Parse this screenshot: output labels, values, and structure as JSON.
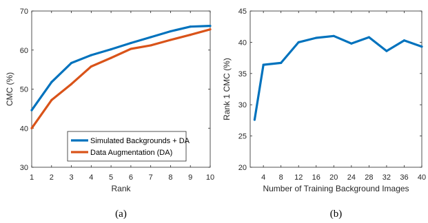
{
  "chart_data": [
    {
      "type": "line",
      "caption": "(a)",
      "xlabel": "Rank",
      "ylabel": "CMC (%)",
      "xlim": [
        1,
        10
      ],
      "ylim": [
        30,
        70
      ],
      "xticks": [
        1,
        2,
        3,
        4,
        5,
        6,
        7,
        8,
        9,
        10
      ],
      "yticks": [
        30,
        40,
        50,
        60,
        70
      ],
      "grid": false,
      "legend_position": "bottom-right",
      "x": [
        1,
        2,
        3,
        4,
        5,
        6,
        7,
        8,
        9,
        10
      ],
      "series": [
        {
          "name": "Simulated Backgrounds + DA",
          "color": "#0072BD",
          "values": [
            44.6,
            51.8,
            56.7,
            58.7,
            60.2,
            61.8,
            63.3,
            64.8,
            66.0,
            66.2
          ]
        },
        {
          "name": "Data Augmentation (DA)",
          "color": "#D95319",
          "values": [
            40.0,
            47.2,
            51.3,
            55.8,
            58.0,
            60.3,
            61.2,
            62.6,
            63.9,
            65.3
          ]
        }
      ]
    },
    {
      "type": "line",
      "caption": "(b)",
      "xlabel": "Number of Training Background Images",
      "ylabel": "Rank 1 CMC (%)",
      "xlim": [
        1,
        40
      ],
      "ylim": [
        20,
        45
      ],
      "xticks": [
        4,
        8,
        12,
        16,
        20,
        24,
        28,
        32,
        36,
        40
      ],
      "yticks": [
        20,
        25,
        30,
        35,
        40,
        45
      ],
      "grid": false,
      "x": [
        2,
        4,
        8,
        12,
        16,
        20,
        24,
        28,
        32,
        36,
        40
      ],
      "series": [
        {
          "color": "#0072BD",
          "values": [
            27.6,
            36.4,
            36.7,
            40.0,
            40.7,
            41.0,
            39.8,
            40.8,
            38.6,
            40.3,
            39.3
          ]
        }
      ]
    }
  ]
}
